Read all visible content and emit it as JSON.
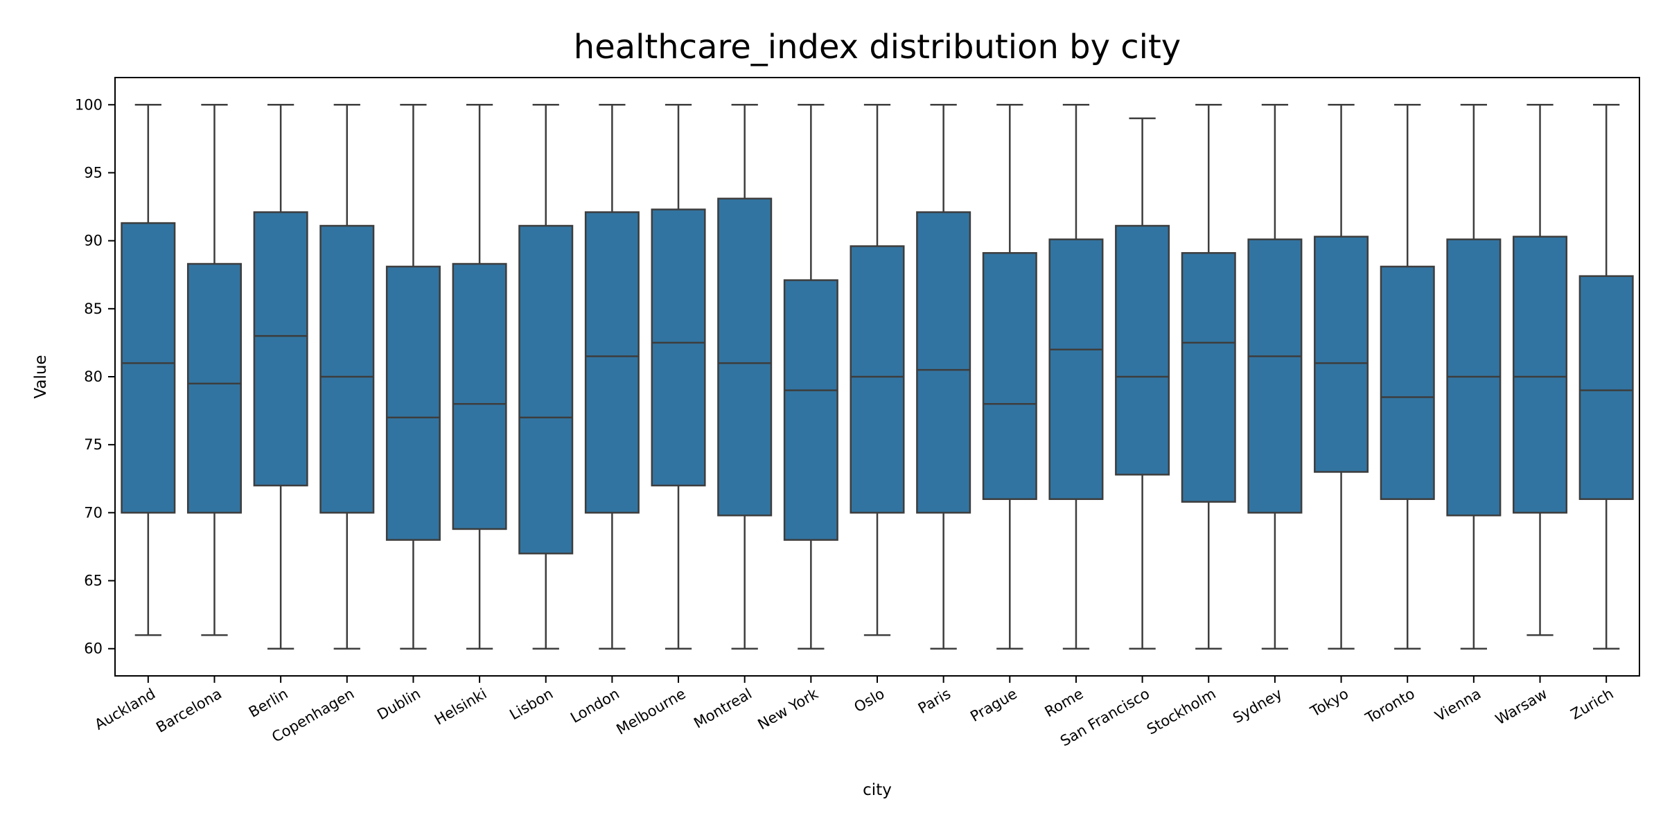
{
  "chart_data": {
    "type": "box",
    "title": "healthcare_index distribution by city",
    "xlabel": "city",
    "ylabel": "Value",
    "ylim": [
      58,
      102
    ],
    "yticks": [
      60,
      65,
      70,
      75,
      80,
      85,
      90,
      95,
      100
    ],
    "grid": false,
    "legend": "none",
    "box_color": "#3274a1",
    "line_color": "#3d3d3d",
    "categories": [
      "Auckland",
      "Barcelona",
      "Berlin",
      "Copenhagen",
      "Dublin",
      "Helsinki",
      "Lisbon",
      "London",
      "Melbourne",
      "Montreal",
      "New York",
      "Oslo",
      "Paris",
      "Prague",
      "Rome",
      "San Francisco",
      "Stockholm",
      "Sydney",
      "Tokyo",
      "Toronto",
      "Vienna",
      "Warsaw",
      "Zurich"
    ],
    "boxes": [
      {
        "min": 61,
        "q1": 70,
        "median": 81,
        "q3": 91.3,
        "max": 100
      },
      {
        "min": 61,
        "q1": 70,
        "median": 79.5,
        "q3": 88.3,
        "max": 100
      },
      {
        "min": 60,
        "q1": 72,
        "median": 83,
        "q3": 92.1,
        "max": 100
      },
      {
        "min": 60,
        "q1": 70,
        "median": 80,
        "q3": 91.1,
        "max": 100
      },
      {
        "min": 60,
        "q1": 68,
        "median": 77,
        "q3": 88.1,
        "max": 100
      },
      {
        "min": 60,
        "q1": 68.8,
        "median": 78,
        "q3": 88.3,
        "max": 100
      },
      {
        "min": 60,
        "q1": 67,
        "median": 77,
        "q3": 91.1,
        "max": 100
      },
      {
        "min": 60,
        "q1": 70,
        "median": 81.5,
        "q3": 92.1,
        "max": 100
      },
      {
        "min": 60,
        "q1": 72,
        "median": 82.5,
        "q3": 92.3,
        "max": 100
      },
      {
        "min": 60,
        "q1": 69.8,
        "median": 81,
        "q3": 93.1,
        "max": 100
      },
      {
        "min": 60,
        "q1": 68,
        "median": 79,
        "q3": 87.1,
        "max": 100
      },
      {
        "min": 61,
        "q1": 70,
        "median": 80,
        "q3": 89.6,
        "max": 100
      },
      {
        "min": 60,
        "q1": 70,
        "median": 80.5,
        "q3": 92.1,
        "max": 100
      },
      {
        "min": 60,
        "q1": 71,
        "median": 78,
        "q3": 89.1,
        "max": 100
      },
      {
        "min": 60,
        "q1": 71,
        "median": 82,
        "q3": 90.1,
        "max": 100
      },
      {
        "min": 60,
        "q1": 72.8,
        "median": 80,
        "q3": 91.1,
        "max": 99
      },
      {
        "min": 60,
        "q1": 70.8,
        "median": 82.5,
        "q3": 89.1,
        "max": 100
      },
      {
        "min": 60,
        "q1": 70,
        "median": 81.5,
        "q3": 90.1,
        "max": 100
      },
      {
        "min": 60,
        "q1": 73,
        "median": 81,
        "q3": 90.3,
        "max": 100
      },
      {
        "min": 60,
        "q1": 71,
        "median": 78.5,
        "q3": 88.1,
        "max": 100
      },
      {
        "min": 60,
        "q1": 69.8,
        "median": 80,
        "q3": 90.1,
        "max": 100
      },
      {
        "min": 61,
        "q1": 70,
        "median": 80,
        "q3": 90.3,
        "max": 100
      },
      {
        "min": 60,
        "q1": 71,
        "median": 79,
        "q3": 87.4,
        "max": 100
      }
    ]
  }
}
